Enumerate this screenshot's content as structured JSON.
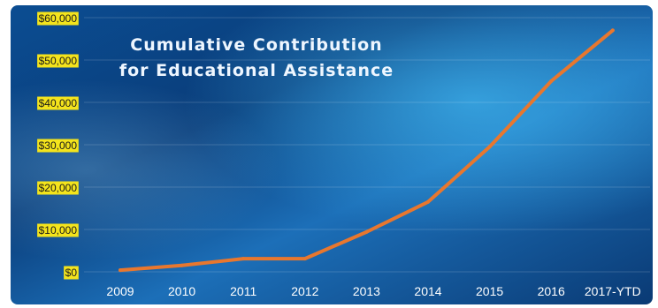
{
  "chart_data": {
    "type": "line",
    "title_lines": [
      "Cumulative Contribution",
      "for Educational Assistance"
    ],
    "xlabel": "",
    "ylabel": "",
    "categories": [
      "2009",
      "2010",
      "2011",
      "2012",
      "2013",
      "2014",
      "2015",
      "2016",
      "2017-YTD"
    ],
    "y_tick_labels": [
      "$0",
      "$10,000",
      "$20,000",
      "$30,000",
      "$40,000",
      "$50,000",
      "$60,000"
    ],
    "y_tick_values": [
      0,
      10000,
      20000,
      30000,
      40000,
      50000,
      60000
    ],
    "ylim": [
      0,
      60000
    ],
    "grid": true,
    "legend": "none",
    "series": [
      {
        "values": [
          400,
          1500,
          3100,
          3100,
          9400,
          16500,
          29500,
          45000,
          57000
        ],
        "color": "#e8772e"
      }
    ]
  },
  "colors": {
    "background_dark": "#0a3f7a",
    "background_light": "#2a9ad8",
    "tick_label_highlight": "#f4e41c",
    "title_text": "#eef6ff",
    "x_tick_text": "#ffffff"
  }
}
